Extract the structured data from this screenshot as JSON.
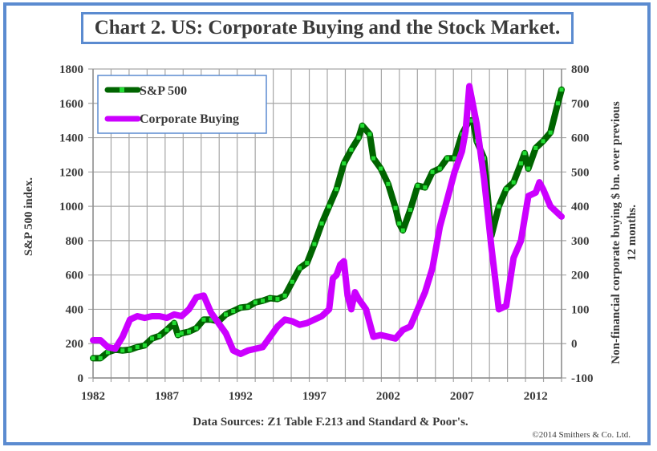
{
  "chart_data": {
    "type": "line",
    "title": "Chart 2. US: Corporate Buying and the Stock Market.",
    "xlabel": "",
    "ylabel": "S&P 500 index.",
    "y2label_line1": "Non-financial corporate buying $ bn. over previous",
    "y2label_line2": "12 months.",
    "x_ticks": [
      "1982",
      "1987",
      "1992",
      "1997",
      "2002",
      "2007",
      "2012"
    ],
    "x_range": [
      1982,
      2013.75
    ],
    "ylim": [
      0,
      1800
    ],
    "y_ticks": [
      "0",
      "200",
      "400",
      "600",
      "800",
      "1000",
      "1200",
      "1400",
      "1600",
      "1800"
    ],
    "y2lim": [
      -100,
      800
    ],
    "y2_ticks": [
      "-100",
      "0",
      "100",
      "200",
      "300",
      "400",
      "500",
      "600",
      "700",
      "800"
    ],
    "grid": true,
    "legend_position": "top-left",
    "source_note": "Data Sources: Z1 Table F.213 and Standard & Poor's.",
    "copyright": "©2014 Smithers & Co. Ltd.",
    "series": [
      {
        "name": "S&P 500",
        "axis": "left",
        "color": "#006400",
        "marker_color": "#22dd33",
        "x": [
          1982.0,
          1982.5,
          1983.0,
          1983.5,
          1984.0,
          1984.5,
          1985.0,
          1985.5,
          1986.0,
          1986.5,
          1987.0,
          1987.5,
          1987.75,
          1988.0,
          1988.5,
          1989.0,
          1989.5,
          1990.0,
          1990.5,
          1991.0,
          1991.5,
          1992.0,
          1992.5,
          1993.0,
          1993.5,
          1994.0,
          1994.5,
          1995.0,
          1995.5,
          1996.0,
          1996.5,
          1997.0,
          1997.5,
          1998.0,
          1998.5,
          1999.0,
          1999.5,
          2000.0,
          2000.25,
          2000.75,
          2001.0,
          2001.5,
          2002.0,
          2002.5,
          2002.75,
          2003.0,
          2003.5,
          2004.0,
          2004.5,
          2005.0,
          2005.5,
          2006.0,
          2006.5,
          2007.0,
          2007.5,
          2007.75,
          2008.0,
          2008.5,
          2009.0,
          2009.5,
          2010.0,
          2010.5,
          2011.0,
          2011.25,
          2011.5,
          2012.0,
          2012.5,
          2013.0,
          2013.5,
          2013.75
        ],
        "values": [
          115,
          115,
          150,
          165,
          160,
          165,
          180,
          190,
          230,
          245,
          280,
          320,
          250,
          260,
          270,
          290,
          340,
          340,
          330,
          370,
          390,
          410,
          415,
          440,
          450,
          465,
          460,
          480,
          560,
          640,
          670,
          780,
          900,
          1000,
          1100,
          1250,
          1330,
          1400,
          1470,
          1420,
          1280,
          1220,
          1130,
          990,
          900,
          860,
          980,
          1120,
          1110,
          1200,
          1220,
          1280,
          1280,
          1420,
          1500,
          1500,
          1380,
          1280,
          830,
          1000,
          1100,
          1140,
          1250,
          1310,
          1220,
          1340,
          1380,
          1430,
          1600,
          1680
        ]
      },
      {
        "name": "Corporate Buying",
        "axis": "right",
        "color": "#cc00ff",
        "x": [
          1982.0,
          1982.5,
          1983.0,
          1983.5,
          1984.0,
          1984.5,
          1985.0,
          1985.5,
          1986.0,
          1986.5,
          1987.0,
          1987.5,
          1988.0,
          1988.5,
          1989.0,
          1989.5,
          1990.0,
          1990.5,
          1991.0,
          1991.5,
          1992.0,
          1992.5,
          1993.0,
          1993.5,
          1994.0,
          1994.5,
          1995.0,
          1995.5,
          1996.0,
          1996.5,
          1997.0,
          1997.5,
          1998.0,
          1998.25,
          1998.5,
          1998.75,
          1999.0,
          1999.25,
          1999.5,
          1999.75,
          2000.0,
          2000.5,
          2001.0,
          2001.5,
          2002.0,
          2002.5,
          2003.0,
          2003.5,
          2004.0,
          2004.5,
          2005.0,
          2005.5,
          2006.0,
          2006.5,
          2007.0,
          2007.25,
          2007.5,
          2008.0,
          2008.5,
          2009.0,
          2009.5,
          2010.0,
          2010.5,
          2011.0,
          2011.5,
          2012.0,
          2012.25,
          2012.5,
          2013.0,
          2013.5,
          2013.75
        ],
        "values": [
          10,
          10,
          -10,
          -15,
          20,
          70,
          80,
          75,
          80,
          80,
          75,
          85,
          80,
          100,
          135,
          140,
          90,
          60,
          30,
          -20,
          -30,
          -20,
          -15,
          -10,
          20,
          50,
          70,
          65,
          55,
          60,
          70,
          80,
          100,
          190,
          200,
          230,
          240,
          140,
          100,
          150,
          130,
          100,
          20,
          25,
          20,
          15,
          40,
          50,
          100,
          150,
          220,
          340,
          420,
          500,
          560,
          620,
          750,
          640,
          480,
          280,
          100,
          110,
          250,
          300,
          430,
          440,
          470,
          450,
          400,
          380,
          370
        ]
      }
    ]
  },
  "legend": [
    {
      "label": "S&P 500"
    },
    {
      "label": "Corporate Buying"
    }
  ]
}
